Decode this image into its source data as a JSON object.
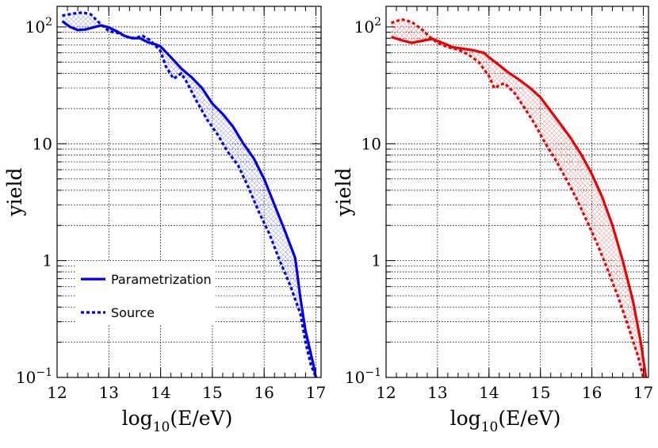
{
  "chart_data": [
    {
      "type": "line",
      "color": "#0000ee",
      "hatch_color": "#9fa8e6",
      "xlabel": "log",
      "xlabel_sub": "10",
      "xlabel_tail": "(E/eV)",
      "ylabel": "yield",
      "xlim": [
        12,
        17.1
      ],
      "ylim": [
        0.1,
        150
      ],
      "yscale": "log",
      "x_ticks": [
        "12",
        "13",
        "14",
        "15",
        "16",
        "17"
      ],
      "x_tick_values": [
        12,
        13,
        14,
        15,
        16,
        17
      ],
      "y_ticks": [
        {
          "value": 0.1,
          "base": "10",
          "exp": "−1"
        },
        {
          "value": 1,
          "base": "1",
          "exp": ""
        },
        {
          "value": 10,
          "base": "10",
          "exp": ""
        },
        {
          "value": 100,
          "base": "10",
          "exp": "2"
        }
      ],
      "legend": {
        "placement": "bottom-left",
        "entries": [
          {
            "label": "Parametrization",
            "style": "solid"
          },
          {
            "label": "Source",
            "style": "dashed"
          }
        ]
      },
      "series": [
        {
          "name": "Parametrization",
          "style": "solid",
          "x": [
            12.1,
            12.25,
            12.4,
            12.55,
            12.7,
            12.85,
            13.0,
            13.15,
            13.3,
            13.45,
            13.6,
            13.75,
            13.9,
            14.0,
            14.2,
            14.4,
            14.6,
            14.8,
            15.0,
            15.2,
            15.4,
            15.6,
            15.8,
            16.0,
            16.2,
            16.4,
            16.6,
            16.7,
            16.8,
            16.95,
            17.0
          ],
          "y": [
            112,
            100,
            94,
            95,
            99,
            103,
            99,
            92,
            84,
            80,
            80,
            74,
            71,
            68,
            55,
            44,
            37,
            30,
            22,
            18,
            14,
            10,
            7.5,
            5.0,
            3.0,
            1.8,
            1.05,
            0.48,
            0.25,
            0.13,
            0.1
          ]
        },
        {
          "name": "Source",
          "style": "dashed",
          "x": [
            12.1,
            12.3,
            12.5,
            12.65,
            12.8,
            13.0,
            13.2,
            13.35,
            13.5,
            13.65,
            13.8,
            14.0,
            14.1,
            14.25,
            14.4,
            14.5,
            14.7,
            14.9,
            15.1,
            15.3,
            15.5,
            15.7,
            15.9,
            16.1,
            16.3,
            16.5,
            16.7,
            16.8,
            16.9,
            17.0
          ],
          "y": [
            125,
            130,
            133,
            128,
            110,
            92,
            88,
            82,
            80,
            84,
            77,
            62,
            46,
            36,
            40,
            34,
            23,
            16,
            12,
            8.5,
            6.5,
            4.2,
            2.6,
            1.7,
            1.0,
            0.62,
            0.35,
            0.2,
            0.13,
            0.1
          ]
        }
      ]
    },
    {
      "type": "line",
      "color": "#ee0000",
      "hatch_color": "#f0a0a0",
      "xlabel": "log",
      "xlabel_sub": "10",
      "xlabel_tail": "(E/eV)",
      "ylabel": "yield",
      "xlim": [
        12,
        17.1
      ],
      "ylim": [
        0.1,
        150
      ],
      "yscale": "log",
      "x_ticks": [
        "12",
        "13",
        "14",
        "15",
        "16",
        "17"
      ],
      "x_tick_values": [
        12,
        13,
        14,
        15,
        16,
        17
      ],
      "y_ticks": [
        {
          "value": 0.1,
          "base": "10",
          "exp": "−1"
        },
        {
          "value": 1,
          "base": "1",
          "exp": ""
        },
        {
          "value": 10,
          "base": "10",
          "exp": ""
        },
        {
          "value": 100,
          "base": "10",
          "exp": "2"
        }
      ],
      "series": [
        {
          "name": "Parametrization",
          "style": "solid",
          "x": [
            12.1,
            12.3,
            12.5,
            12.7,
            12.9,
            13.1,
            13.3,
            13.5,
            13.7,
            13.9,
            14.0,
            14.2,
            14.4,
            14.6,
            14.8,
            15.0,
            15.2,
            15.4,
            15.6,
            15.8,
            16.0,
            16.2,
            16.4,
            16.6,
            16.8,
            16.95,
            17.05
          ],
          "y": [
            82,
            77,
            73,
            76,
            79,
            73,
            67,
            65,
            63,
            60,
            55,
            47,
            40,
            35,
            30,
            25,
            19,
            14.5,
            11,
            8,
            5.5,
            3.5,
            2.0,
            1.0,
            0.45,
            0.2,
            0.1
          ]
        },
        {
          "name": "Source",
          "style": "dashed",
          "x": [
            12.1,
            12.3,
            12.5,
            12.7,
            12.85,
            13.0,
            13.2,
            13.4,
            13.6,
            13.8,
            14.0,
            14.1,
            14.3,
            14.5,
            14.7,
            14.9,
            15.1,
            15.3,
            15.5,
            15.7,
            15.9,
            16.1,
            16.3,
            16.5,
            16.7,
            16.9,
            17.0
          ],
          "y": [
            108,
            116,
            110,
            95,
            82,
            73,
            67,
            64,
            58,
            50,
            38,
            30,
            33,
            27,
            20,
            14.5,
            10,
            7.2,
            5,
            3.4,
            2.2,
            1.4,
            0.85,
            0.5,
            0.28,
            0.15,
            0.1
          ]
        }
      ]
    }
  ]
}
